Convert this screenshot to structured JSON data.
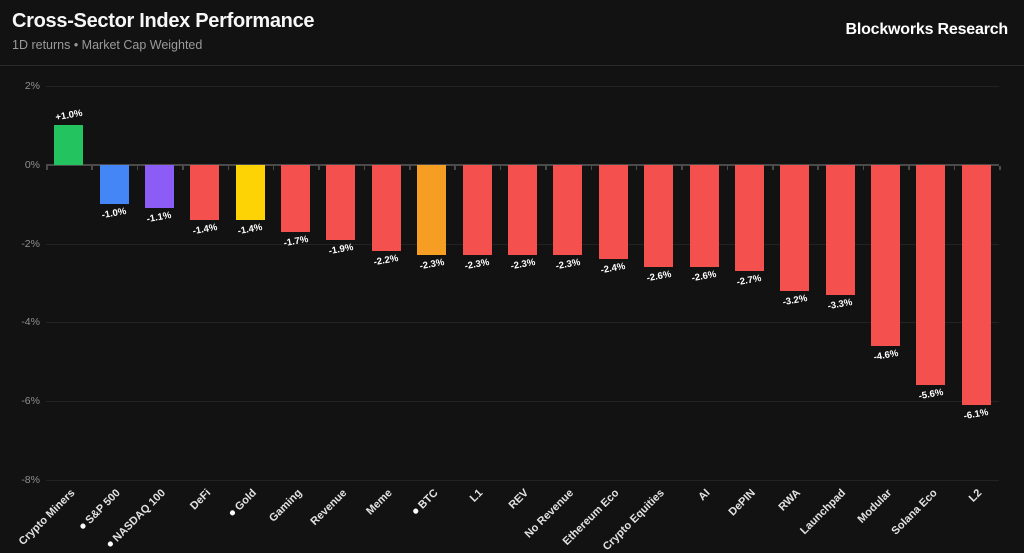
{
  "header": {
    "title": "Cross-Sector Index Performance",
    "subtitle": "1D returns • Market Cap Weighted",
    "brand": "Blockworks Research"
  },
  "colors": {
    "background": "#121212",
    "divider": "#2a2a2a",
    "gridline": "#232323",
    "axis_line": "#4a4a4a",
    "y_tick_text": "#8f8f8f",
    "x_label_text": "#e2e2e2",
    "value_label_text": "#ffffff",
    "positive_green": "#23c35f",
    "negative_red": "#f4504d",
    "sp500_blue": "#4486f6",
    "nasdaq_purple": "#8b5cf6",
    "gold_yellow": "#fdd305",
    "btc_orange": "#f59e23"
  },
  "chart_data": {
    "type": "bar",
    "title": "Cross-Sector Index Performance",
    "subtitle": "1D returns • Market Cap Weighted",
    "ylim": [
      2,
      -8
    ],
    "grid": true,
    "legend": "none",
    "yticks": [
      {
        "label": "2%",
        "value": 2
      },
      {
        "label": "0%",
        "value": 0
      },
      {
        "label": "-2%",
        "value": -2
      },
      {
        "label": "-4%",
        "value": -4
      },
      {
        "label": "-6%",
        "value": -6
      },
      {
        "label": "-8%",
        "value": -8
      }
    ],
    "bars": [
      {
        "label": "Crypto Miners",
        "value": 1.0,
        "display": "+1.0%",
        "color": "#23c35f",
        "benchmark_dot": false
      },
      {
        "label": "S&P 500",
        "value": -1.0,
        "display": "-1.0%",
        "color": "#4486f6",
        "benchmark_dot": true
      },
      {
        "label": "NASDAQ 100",
        "value": -1.1,
        "display": "-1.1%",
        "color": "#8b5cf6",
        "benchmark_dot": true
      },
      {
        "label": "DeFi",
        "value": -1.4,
        "display": "-1.4%",
        "color": "#f4504d",
        "benchmark_dot": false
      },
      {
        "label": "Gold",
        "value": -1.4,
        "display": "-1.4%",
        "color": "#fdd305",
        "benchmark_dot": true
      },
      {
        "label": "Gaming",
        "value": -1.7,
        "display": "-1.7%",
        "color": "#f4504d",
        "benchmark_dot": false
      },
      {
        "label": "Revenue",
        "value": -1.9,
        "display": "-1.9%",
        "color": "#f4504d",
        "benchmark_dot": false
      },
      {
        "label": "Meme",
        "value": -2.2,
        "display": "-2.2%",
        "color": "#f4504d",
        "benchmark_dot": false
      },
      {
        "label": "BTC",
        "value": -2.3,
        "display": "-2.3%",
        "color": "#f59e23",
        "benchmark_dot": true
      },
      {
        "label": "L1",
        "value": -2.3,
        "display": "-2.3%",
        "color": "#f4504d",
        "benchmark_dot": false
      },
      {
        "label": "REV",
        "value": -2.3,
        "display": "-2.3%",
        "color": "#f4504d",
        "benchmark_dot": false
      },
      {
        "label": "No Revenue",
        "value": -2.3,
        "display": "-2.3%",
        "color": "#f4504d",
        "benchmark_dot": false
      },
      {
        "label": "Ethereum Eco",
        "value": -2.4,
        "display": "-2.4%",
        "color": "#f4504d",
        "benchmark_dot": false
      },
      {
        "label": "Crypto Equities",
        "value": -2.6,
        "display": "-2.6%",
        "color": "#f4504d",
        "benchmark_dot": false
      },
      {
        "label": "AI",
        "value": -2.6,
        "display": "-2.6%",
        "color": "#f4504d",
        "benchmark_dot": false
      },
      {
        "label": "DePIN",
        "value": -2.7,
        "display": "-2.7%",
        "color": "#f4504d",
        "benchmark_dot": false
      },
      {
        "label": "RWA",
        "value": -3.2,
        "display": "-3.2%",
        "color": "#f4504d",
        "benchmark_dot": false
      },
      {
        "label": "Launchpad",
        "value": -3.3,
        "display": "-3.3%",
        "color": "#f4504d",
        "benchmark_dot": false
      },
      {
        "label": "Modular",
        "value": -4.6,
        "display": "-4.6%",
        "color": "#f4504d",
        "benchmark_dot": false
      },
      {
        "label": "Solana Eco",
        "value": -5.6,
        "display": "-5.6%",
        "color": "#f4504d",
        "benchmark_dot": false
      },
      {
        "label": "L2",
        "value": -6.1,
        "display": "-6.1%",
        "color": "#f4504d",
        "benchmark_dot": false
      }
    ]
  }
}
